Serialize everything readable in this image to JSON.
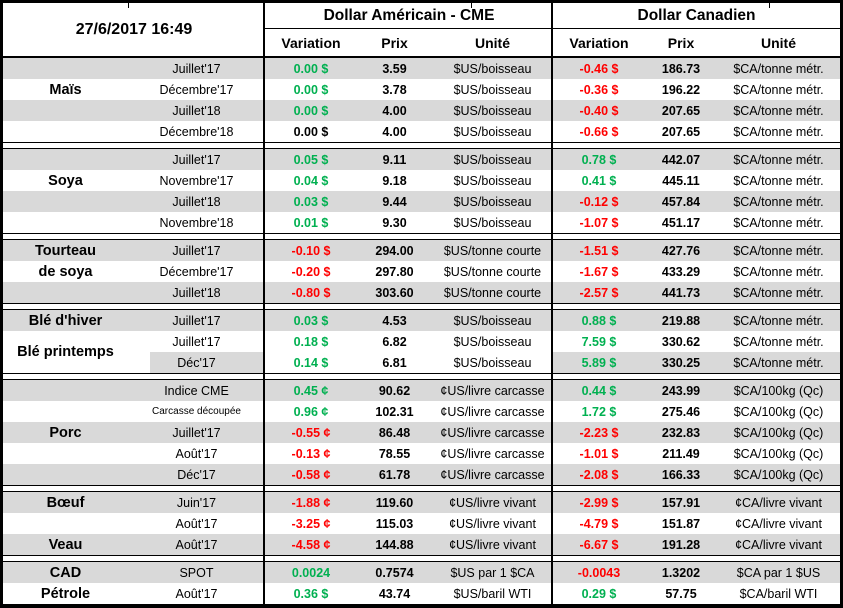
{
  "meta": {
    "timestamp": "27/6/2017 16:49"
  },
  "header": {
    "us_group": "Dollar Américain - CME",
    "ca_group": "Dollar Canadien",
    "columns": {
      "variation": "Variation",
      "prix": "Prix",
      "unite": "Unité"
    }
  },
  "colors": {
    "positive": "#00B050",
    "negative": "#FF0000",
    "neutral": "#000000",
    "row_shade": "#D9D9D9"
  },
  "chart_data": {
    "type": "table",
    "title": "Commodity futures prices in US and Canadian dollars",
    "sections": [
      {
        "id": "mais",
        "labels": [
          {
            "text": "Maïs",
            "row": 1,
            "span": 1
          }
        ],
        "rows": [
          {
            "month": "Juillet'17",
            "shade": "gray",
            "us": {
              "var": "0.00 $",
              "trend": "pos",
              "prix": "3.59",
              "unit": "$US/boisseau"
            },
            "ca": {
              "var": "-0.46 $",
              "trend": "neg",
              "prix": "186.73",
              "unit": "$CA/tonne métr."
            }
          },
          {
            "month": "Décembre'17",
            "shade": "white",
            "us": {
              "var": "0.00 $",
              "trend": "pos",
              "prix": "3.78",
              "unit": "$US/boisseau"
            },
            "ca": {
              "var": "-0.36 $",
              "trend": "neg",
              "prix": "196.22",
              "unit": "$CA/tonne métr."
            }
          },
          {
            "month": "Juillet'18",
            "shade": "gray",
            "us": {
              "var": "0.00 $",
              "trend": "pos",
              "prix": "4.00",
              "unit": "$US/boisseau"
            },
            "ca": {
              "var": "-0.40 $",
              "trend": "neg",
              "prix": "207.65",
              "unit": "$CA/tonne métr."
            }
          },
          {
            "month": "Décembre'18",
            "shade": "white",
            "us": {
              "var": "0.00 $",
              "trend": "flat",
              "prix": "4.00",
              "unit": "$US/boisseau"
            },
            "ca": {
              "var": "-0.66 $",
              "trend": "neg",
              "prix": "207.65",
              "unit": "$CA/tonne métr."
            }
          }
        ]
      },
      {
        "id": "soya",
        "labels": [
          {
            "text": "Soya",
            "row": 1,
            "span": 1
          }
        ],
        "rows": [
          {
            "month": "Juillet'17",
            "shade": "gray",
            "us": {
              "var": "0.05 $",
              "trend": "pos",
              "prix": "9.11",
              "unit": "$US/boisseau"
            },
            "ca": {
              "var": "0.78 $",
              "trend": "pos",
              "prix": "442.07",
              "unit": "$CA/tonne métr."
            }
          },
          {
            "month": "Novembre'17",
            "shade": "white",
            "us": {
              "var": "0.04 $",
              "trend": "pos",
              "prix": "9.18",
              "unit": "$US/boisseau"
            },
            "ca": {
              "var": "0.41 $",
              "trend": "pos",
              "prix": "445.11",
              "unit": "$CA/tonne métr."
            }
          },
          {
            "month": "Juillet'18",
            "shade": "gray",
            "us": {
              "var": "0.03 $",
              "trend": "pos",
              "prix": "9.44",
              "unit": "$US/boisseau"
            },
            "ca": {
              "var": "-0.12 $",
              "trend": "neg",
              "prix": "457.84",
              "unit": "$CA/tonne métr."
            }
          },
          {
            "month": "Novembre'18",
            "shade": "white",
            "us": {
              "var": "0.01 $",
              "trend": "pos",
              "prix": "9.30",
              "unit": "$US/boisseau"
            },
            "ca": {
              "var": "-1.07 $",
              "trend": "neg",
              "prix": "451.17",
              "unit": "$CA/tonne métr."
            }
          }
        ]
      },
      {
        "id": "tourteau-de-soya",
        "labels": [
          {
            "text": "Tourteau",
            "row": 0,
            "span": 1
          },
          {
            "text": "de soya",
            "row": 1,
            "span": 1
          }
        ],
        "rows": [
          {
            "month": "Juillet'17",
            "shade": "gray",
            "us": {
              "var": "-0.10 $",
              "trend": "neg",
              "prix": "294.00",
              "unit": "$US/tonne courte"
            },
            "ca": {
              "var": "-1.51 $",
              "trend": "neg",
              "prix": "427.76",
              "unit": "$CA/tonne métr."
            }
          },
          {
            "month": "Décembre'17",
            "shade": "white",
            "us": {
              "var": "-0.20 $",
              "trend": "neg",
              "prix": "297.80",
              "unit": "$US/tonne courte"
            },
            "ca": {
              "var": "-1.67 $",
              "trend": "neg",
              "prix": "433.29",
              "unit": "$CA/tonne métr."
            }
          },
          {
            "month": "Juillet'18",
            "shade": "gray",
            "us": {
              "var": "-0.80 $",
              "trend": "neg",
              "prix": "303.60",
              "unit": "$US/tonne courte"
            },
            "ca": {
              "var": "-2.57 $",
              "trend": "neg",
              "prix": "441.73",
              "unit": "$CA/tonne métr."
            }
          }
        ]
      },
      {
        "id": "ble",
        "labels": [
          {
            "text": "Blé d'hiver",
            "row": 0,
            "span": 1
          },
          {
            "text": "Blé printemps",
            "row": 1,
            "span": 2
          }
        ],
        "rows": [
          {
            "month": "Juillet'17",
            "shade": "gray",
            "us": {
              "var": "0.03 $",
              "trend": "pos",
              "prix": "4.53",
              "unit": "$US/boisseau"
            },
            "ca": {
              "var": "0.88 $",
              "trend": "pos",
              "prix": "219.88",
              "unit": "$CA/tonne métr."
            }
          },
          {
            "month": "Juillet'17",
            "shade": "white",
            "us": {
              "var": "0.18 $",
              "trend": "pos",
              "prix": "6.82",
              "unit": "$US/boisseau"
            },
            "ca": {
              "var": "7.59 $",
              "trend": "pos",
              "prix": "330.62",
              "unit": "$CA/tonne métr."
            }
          },
          {
            "month": "Déc'17",
            "shade": "special",
            "us": {
              "var": "0.14 $",
              "trend": "pos",
              "prix": "6.81",
              "unit": "$US/boisseau"
            },
            "ca": {
              "var": "5.89 $",
              "trend": "pos",
              "prix": "330.25",
              "unit": "$CA/tonne métr."
            }
          }
        ]
      },
      {
        "id": "porc",
        "labels": [
          {
            "text": "Porc",
            "row": 2,
            "span": 1
          }
        ],
        "rows": [
          {
            "month": "Indice CME",
            "shade": "gray",
            "us": {
              "var": "0.45 ¢",
              "trend": "pos",
              "prix": "90.62",
              "unit": "¢US/livre carcasse"
            },
            "ca": {
              "var": "0.44 $",
              "trend": "pos",
              "prix": "243.99",
              "unit": "$CA/100kg (Qc)"
            }
          },
          {
            "month": "Carcasse découpée",
            "shade": "white",
            "small": true,
            "us": {
              "var": "0.96 ¢",
              "trend": "pos",
              "prix": "102.31",
              "unit": "¢US/livre carcasse"
            },
            "ca": {
              "var": "1.72 $",
              "trend": "pos",
              "prix": "275.46",
              "unit": "$CA/100kg (Qc)"
            }
          },
          {
            "month": "Juillet'17",
            "shade": "gray",
            "us": {
              "var": "-0.55 ¢",
              "trend": "neg",
              "prix": "86.48",
              "unit": "¢US/livre carcasse"
            },
            "ca": {
              "var": "-2.23 $",
              "trend": "neg",
              "prix": "232.83",
              "unit": "$CA/100kg (Qc)"
            }
          },
          {
            "month": "Août'17",
            "shade": "white",
            "us": {
              "var": "-0.13 ¢",
              "trend": "neg",
              "prix": "78.55",
              "unit": "¢US/livre carcasse"
            },
            "ca": {
              "var": "-1.01 $",
              "trend": "neg",
              "prix": "211.49",
              "unit": "$CA/100kg (Qc)"
            }
          },
          {
            "month": "Déc'17",
            "shade": "gray",
            "us": {
              "var": "-0.58 ¢",
              "trend": "neg",
              "prix": "61.78",
              "unit": "¢US/livre carcasse"
            },
            "ca": {
              "var": "-2.08 $",
              "trend": "neg",
              "prix": "166.33",
              "unit": "$CA/100kg (Qc)"
            }
          }
        ]
      },
      {
        "id": "boeuf-veau",
        "labels": [
          {
            "text": "Bœuf",
            "row": 0,
            "span": 1
          },
          {
            "text": "Veau",
            "row": 2,
            "span": 1
          }
        ],
        "rows": [
          {
            "month": "Juin'17",
            "shade": "gray",
            "us": {
              "var": "-1.88 ¢",
              "trend": "neg",
              "prix": "119.60",
              "unit": "¢US/livre vivant"
            },
            "ca": {
              "var": "-2.99 $",
              "trend": "neg",
              "prix": "157.91",
              "unit": "¢CA/livre vivant"
            }
          },
          {
            "month": "Août'17",
            "shade": "white",
            "us": {
              "var": "-3.25 ¢",
              "trend": "neg",
              "prix": "115.03",
              "unit": "¢US/livre vivant"
            },
            "ca": {
              "var": "-4.79 $",
              "trend": "neg",
              "prix": "151.87",
              "unit": "¢CA/livre vivant"
            }
          },
          {
            "month": "Août'17",
            "shade": "gray",
            "us": {
              "var": "-4.58 ¢",
              "trend": "neg",
              "prix": "144.88",
              "unit": "¢US/livre vivant"
            },
            "ca": {
              "var": "-6.67 $",
              "trend": "neg",
              "prix": "191.28",
              "unit": "¢CA/livre vivant"
            }
          }
        ]
      },
      {
        "id": "cad-petrole",
        "labels": [
          {
            "text": "CAD",
            "row": 0,
            "span": 1
          },
          {
            "text": "Pétrole",
            "row": 1,
            "span": 1
          }
        ],
        "rows": [
          {
            "month": "SPOT",
            "shade": "gray",
            "us": {
              "var": "0.0024",
              "trend": "pos",
              "prix": "0.7574",
              "unit": "$US par 1 $CA"
            },
            "ca": {
              "var": "-0.0043",
              "trend": "neg",
              "prix": "1.3202",
              "unit": "$CA par 1 $US"
            }
          },
          {
            "month": "Août'17",
            "shade": "white",
            "us": {
              "var": "0.36 $",
              "trend": "pos",
              "prix": "43.74",
              "unit": "$US/baril WTI"
            },
            "ca": {
              "var": "0.29 $",
              "trend": "pos",
              "prix": "57.75",
              "unit": "$CA/baril WTI"
            }
          }
        ]
      }
    ]
  }
}
